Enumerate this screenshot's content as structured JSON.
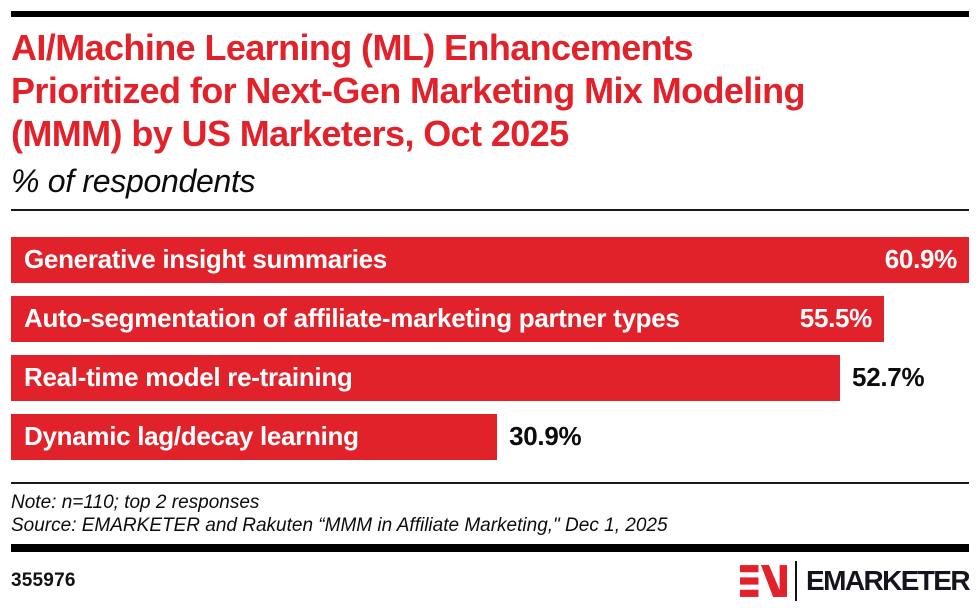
{
  "page": {
    "background": "#ffffff",
    "accent_red": "#e2222b",
    "ink": "#111111"
  },
  "header": {
    "title": "AI/Machine Learning (ML) Enhancements Prioritized for Next-Gen Marketing Mix Modeling (MMM) by US Marketers, Oct 2025",
    "title_lines": [
      "AI/Machine Learning (ML) Enhancements",
      "Prioritized for Next-Gen Marketing Mix Modeling",
      "(MMM) by US Marketers, Oct 2025"
    ],
    "subtitle": "% of respondents"
  },
  "chart_data": {
    "type": "bar",
    "orientation": "horizontal",
    "title": "AI/Machine Learning (ML) Enhancements Prioritized for Next-Gen Marketing Mix Modeling (MMM) by US Marketers, Oct 2025",
    "subtitle": "% of respondents",
    "categories": [
      "Generative insight summaries",
      "Auto-segmentation of affiliate-marketing partner types",
      "Real-time model re-training",
      "Dynamic lag/decay learning"
    ],
    "values": [
      60.9,
      55.5,
      52.7,
      30.9
    ],
    "value_labels": [
      "60.9%",
      "55.5%",
      "52.7%",
      "30.9%"
    ],
    "value_label_inside_bar": [
      true,
      true,
      false,
      false
    ],
    "unit": "%",
    "scale_max": 60.9,
    "xlim": [
      0,
      60.9
    ],
    "grid": false,
    "legend": "none",
    "bar_color": "#e2222b",
    "category_label_color": "#ffffff"
  },
  "footer": {
    "note": "Note: n=110; top 2 responses",
    "source": "Source: EMARKETER and Rakuten “MMM in Affiliate Marketing,\" Dec 1, 2025",
    "chart_id": "355976",
    "brand": "EMARKETER"
  }
}
